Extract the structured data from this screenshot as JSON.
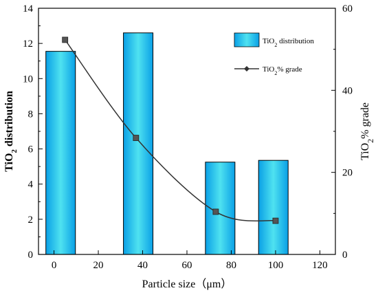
{
  "chart_data": {
    "type": "bar+line",
    "x_axis": {
      "label": "Particle size（μm）",
      "range": [
        -7,
        127
      ],
      "ticks": [
        0,
        20,
        40,
        60,
        80,
        100,
        120
      ]
    },
    "y_axis_left": {
      "label_main": "TiO",
      "label_sub": "2",
      "label_rest": " distribution",
      "range": [
        0,
        14
      ],
      "ticks": [
        0,
        2,
        4,
        6,
        8,
        10,
        12,
        14
      ]
    },
    "y_axis_right": {
      "label_main": "TiO",
      "label_sub": "2",
      "label_rest": "% grade",
      "range": [
        0,
        60
      ],
      "ticks": [
        0,
        20,
        40,
        60
      ]
    },
    "bars": {
      "name_main": "TiO",
      "name_sub": "2",
      "name_rest": " distribution",
      "x": [
        3,
        38,
        75,
        99
      ],
      "values": [
        11.55,
        12.6,
        5.25,
        5.35
      ],
      "color_dark": "#0aa0e6",
      "color_light": "#4fe2f0"
    },
    "line": {
      "name_main": "TiO",
      "name_sub": "2",
      "name_rest": "%  grade",
      "x": [
        5,
        37,
        73,
        100
      ],
      "values": [
        52.3,
        28.4,
        10.4,
        8.2
      ],
      "color": "#333333"
    },
    "grid": false,
    "legend_position": "top-right"
  }
}
